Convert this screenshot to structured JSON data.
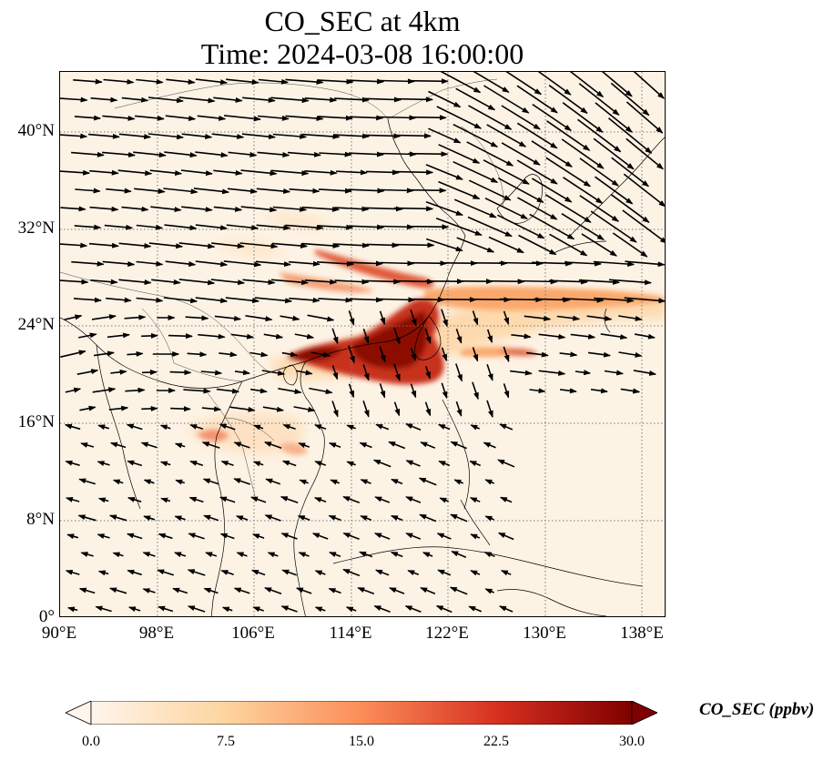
{
  "title_line1": "CO_SEC at 4km",
  "title_line2": "Time: 2024-03-08 16:00:00",
  "lat_labels": [
    "40°N",
    "32°N",
    "24°N",
    "16°N",
    "8°N",
    "0°"
  ],
  "lon_labels": [
    "90°E",
    "98°E",
    "106°E",
    "114°E",
    "122°E",
    "130°E",
    "138°E"
  ],
  "colorbar": {
    "label": "CO_SEC (ppbv)",
    "ticks": [
      "0.0",
      "7.5",
      "15.0",
      "22.5",
      "30.0"
    ],
    "colors": [
      "#fff5eb",
      "#fdd49e",
      "#fc8d59",
      "#d7301f",
      "#7f0000"
    ],
    "range": [
      0,
      30
    ],
    "extend": "both"
  },
  "map": {
    "projection": "PlateCarree",
    "lon_range": [
      90,
      140
    ],
    "lat_range": [
      0,
      45
    ],
    "gridlines": "dotted"
  }
}
